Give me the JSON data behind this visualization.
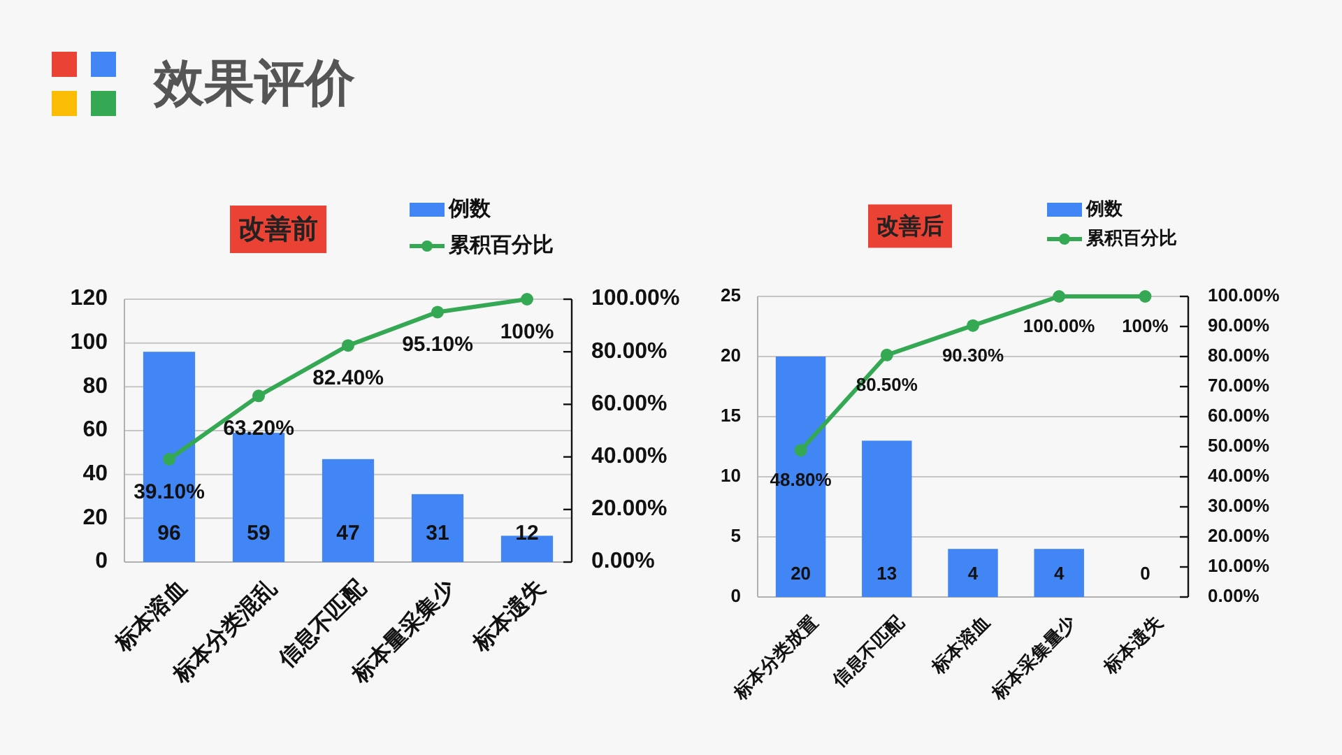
{
  "chart_data": [
    {
      "type": "bar",
      "title": "改善前",
      "annotations": [
        "效果评价"
      ],
      "categories": [
        "标本溶血",
        "标本分类混乱",
        "信息不匹配",
        "标本量采集少",
        "标本遗失"
      ],
      "series": [
        {
          "name": "例数",
          "color": "#4285f4",
          "values": [
            96,
            59,
            47,
            31,
            12
          ],
          "value_labels": [
            "96",
            "59",
            "47",
            "31",
            "12"
          ]
        },
        {
          "name": "累积百分比",
          "type": "line",
          "axis": "y2",
          "marker": "circle",
          "color": "#34a853",
          "values": [
            39.1,
            63.2,
            82.4,
            95.1,
            100
          ],
          "value_labels": [
            "39.10%",
            "63.20%",
            "82.40%",
            "95.10%",
            "100%"
          ]
        }
      ],
      "ylim": [
        0,
        120
      ],
      "yticks": [
        0,
        20,
        40,
        60,
        80,
        100,
        120
      ],
      "y2lim": [
        0,
        100
      ],
      "y2ticks": [
        {
          "value": 0,
          "label": "0.00%"
        },
        {
          "value": 20,
          "label": "20.00%"
        },
        {
          "value": 40,
          "label": "40.00%"
        },
        {
          "value": 60,
          "label": "60.00%"
        },
        {
          "value": 80,
          "label": "80.00%"
        },
        {
          "value": 100,
          "label": "100.00%"
        }
      ],
      "grid": "y",
      "legend": "top"
    },
    {
      "type": "bar",
      "title": "改善后",
      "categories": [
        "标本分类放置",
        "信息不匹配",
        "标本溶血",
        "标本采集量少",
        "标本遗失"
      ],
      "series": [
        {
          "name": "例数",
          "color": "#4285f4",
          "values": [
            20,
            13,
            4,
            4,
            0
          ],
          "value_labels": [
            "20",
            "13",
            "4",
            "4",
            "0"
          ]
        },
        {
          "name": "累积百分比",
          "type": "line",
          "axis": "y2",
          "marker": "circle",
          "color": "#34a853",
          "values": [
            48.8,
            80.5,
            90.3,
            100,
            100
          ],
          "value_labels": [
            "48.80%",
            "80.50%",
            "90.30%",
            "100.00%",
            "100%"
          ]
        }
      ],
      "ylim": [
        0,
        25
      ],
      "yticks": [
        0,
        5,
        10,
        15,
        20,
        25
      ],
      "y2lim": [
        0,
        100
      ],
      "y2ticks": [
        {
          "value": 0,
          "label": "0.00%"
        },
        {
          "value": 10,
          "label": "10.00%"
        },
        {
          "value": 20,
          "label": "20.00%"
        },
        {
          "value": 30,
          "label": "30.00%"
        },
        {
          "value": 40,
          "label": "40.00%"
        },
        {
          "value": 50,
          "label": "50.00%"
        },
        {
          "value": 60,
          "label": "60.00%"
        },
        {
          "value": 70,
          "label": "70.00%"
        },
        {
          "value": 80,
          "label": "80.00%"
        },
        {
          "value": 90,
          "label": "90.00%"
        },
        {
          "value": 100,
          "label": "100.00%"
        }
      ],
      "grid": "y",
      "legend": "top"
    }
  ]
}
